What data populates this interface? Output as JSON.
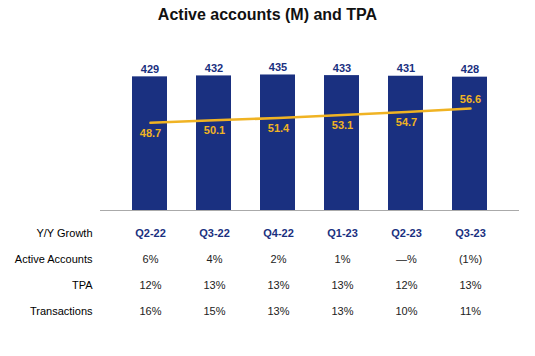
{
  "chart_data": {
    "type": "combo",
    "title": "Active accounts (M) and TPA",
    "categories": [
      "Q2-22",
      "Q3-22",
      "Q4-22",
      "Q1-23",
      "Q2-23",
      "Q3-23"
    ],
    "series": [
      {
        "type": "bar",
        "color": "#1a3080",
        "values": [
          429,
          432,
          435,
          433,
          431,
          428
        ]
      },
      {
        "type": "line",
        "axis": "y2",
        "color": "#f0b323",
        "values": [
          48.7,
          50.1,
          51.4,
          53.1,
          54.7,
          56.6
        ]
      }
    ],
    "ylim": [
      0,
      520
    ],
    "y2lim": [
      0,
      90
    ],
    "data_labels": true,
    "tick_labels": "x",
    "grid": false,
    "table": {
      "header": "Y/Y Growth",
      "rows": [
        {
          "label": "Active Accounts",
          "values": [
            "6%",
            "4%",
            "2%",
            "1%",
            "—%",
            "(1%)"
          ]
        },
        {
          "label": "TPA",
          "values": [
            "12%",
            "13%",
            "13%",
            "13%",
            "12%",
            "13%"
          ]
        },
        {
          "label": "Transactions",
          "values": [
            "16%",
            "15%",
            "13%",
            "13%",
            "10%",
            "11%"
          ]
        }
      ]
    }
  }
}
